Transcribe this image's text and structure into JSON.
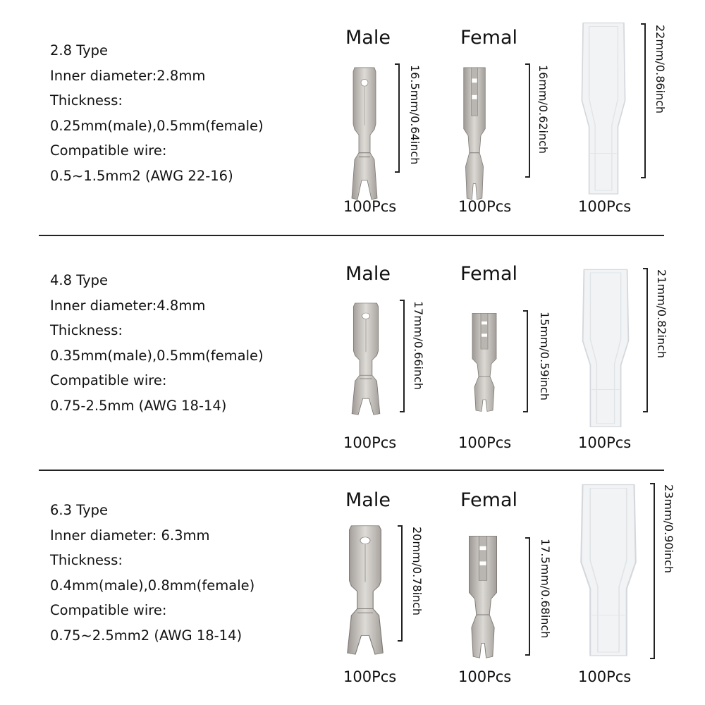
{
  "sections": [
    {
      "specs": [
        "2.8 Type",
        "Inner diameter:2.8mm",
        "Thickness:",
        "0.25mm(male),0.5mm(female)",
        "Compatible wire:",
        "0.5~1.5mm2 (AWG 22-16)"
      ],
      "male": {
        "label": "Male",
        "dimension": "16.5mm/0.64inch",
        "quantity": "100Pcs"
      },
      "female": {
        "label": "Femal",
        "dimension": "16mm/0.62inch",
        "quantity": "100Pcs"
      },
      "boot": {
        "dimension": "22mm/0.86inch",
        "quantity": "100Pcs"
      }
    },
    {
      "specs": [
        "4.8 Type",
        "Inner diameter:4.8mm",
        "Thickness:",
        "0.35mm(male),0.5mm(female)",
        "Compatible wire:",
        "0.75-2.5mm (AWG 18-14)"
      ],
      "male": {
        "label": "Male",
        "dimension": "17mm/0.66inch",
        "quantity": "100Pcs"
      },
      "female": {
        "label": "Femal",
        "dimension": "15mm/0.59inch",
        "quantity": "100Pcs"
      },
      "boot": {
        "dimension": "21mm/0.82inch",
        "quantity": "100Pcs"
      }
    },
    {
      "specs": [
        "6.3 Type",
        "Inner diameter: 6.3mm",
        "Thickness:",
        "0.4mm(male),0.8mm(female)",
        "Compatible wire:",
        "0.75~2.5mm2 (AWG 18-14)"
      ],
      "male": {
        "label": "Male",
        "dimension": "20mm/0.78inch",
        "quantity": "100Pcs"
      },
      "female": {
        "label": "Femal",
        "dimension": "17.5mm/0.68inch",
        "quantity": "100Pcs"
      },
      "boot": {
        "dimension": "23mm/0.90inch",
        "quantity": "100Pcs"
      }
    }
  ],
  "colors": {
    "metal": "#c9c6c2",
    "metal_dark": "#8f8a85",
    "boot": "#f1f3f5",
    "boot_edge": "#d4d8dc",
    "text": "#111111"
  }
}
